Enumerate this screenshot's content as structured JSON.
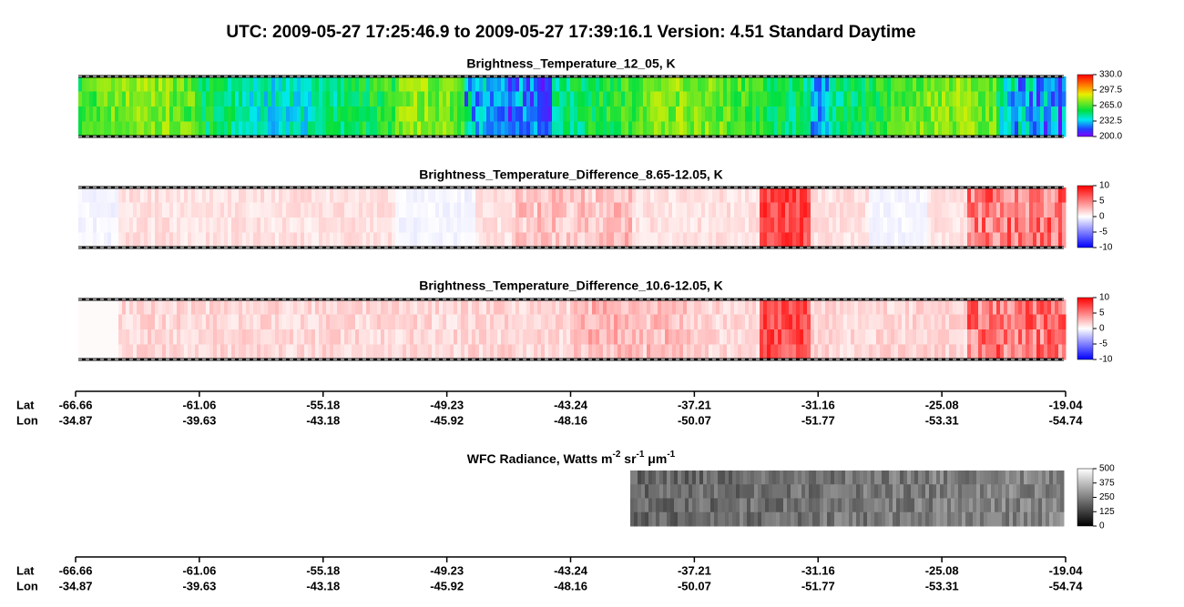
{
  "title": "UTC:  2009-05-27   17:25:46.9  to  2009-05-27   17:39:16.1    Version: 4.51  Standard Daytime",
  "panels": [
    {
      "title": "Brightness_Temperature_12_05, K",
      "colorbar": {
        "ticks": [
          {
            "value": 330,
            "label": "330.0"
          },
          297.5,
          {
            "value": 265,
            "label": "265.0"
          },
          232.5,
          {
            "value": 200,
            "label": "200.0"
          }
        ]
      }
    },
    {
      "title": "Brightness_Temperature_Difference_8.65-12.05, K",
      "colorbar": {
        "ticks": [
          10,
          5,
          0,
          -5,
          -10
        ]
      }
    },
    {
      "title": "Brightness_Temperature_Difference_10.6-12.05, K",
      "colorbar": {
        "ticks": [
          10,
          5,
          0,
          -5,
          -10
        ]
      }
    },
    {
      "title": [
        "WFC Radiance, Watts m",
        "-2",
        " sr",
        "-1",
        " μm",
        "-1"
      ],
      "colorbar": {
        "ticks": [
          500,
          375,
          250,
          125,
          0
        ]
      }
    }
  ],
  "axes": [
    {
      "lat_label": "Lat",
      "lon_label": "Lon",
      "lat": [
        -66.66,
        -61.06,
        -55.18,
        -49.23,
        -43.24,
        -37.21,
        -31.16,
        -25.08,
        -19.04
      ],
      "lon": [
        -34.87,
        -39.63,
        -43.18,
        -45.92,
        -48.16,
        -50.07,
        -51.77,
        -53.31,
        -54.74
      ]
    },
    {
      "lat_label": "Lat",
      "lon_label": "Lon",
      "lat": [
        -66.66,
        -61.06,
        -55.18,
        -49.23,
        -43.24,
        -37.21,
        -31.16,
        -25.08,
        -19.04
      ],
      "lon": [
        -34.87,
        -39.63,
        -43.18,
        -45.92,
        -48.16,
        -50.07,
        -51.77,
        -53.31,
        -54.74
      ]
    }
  ]
}
